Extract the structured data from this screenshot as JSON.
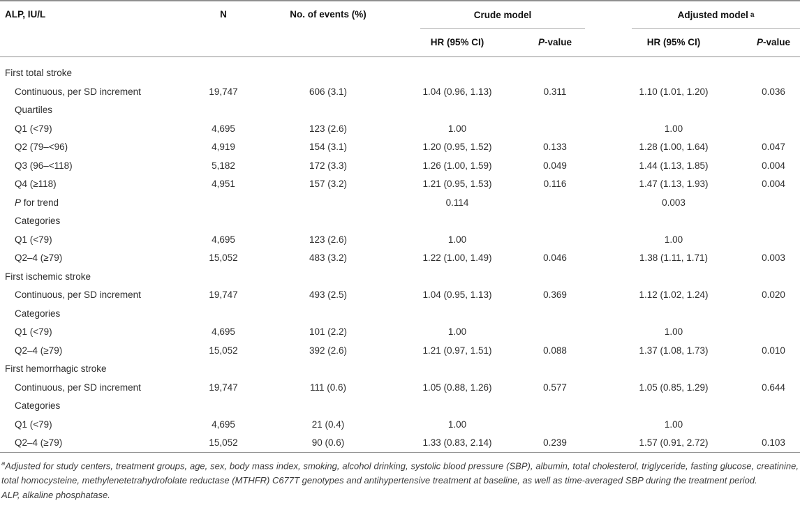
{
  "table": {
    "header": {
      "col1": "ALP, IU/L",
      "n": "N",
      "events": "No. of events (%)",
      "crude_group": "Crude model",
      "adjusted_group": "Adjusted model",
      "adjusted_group_sup": "a",
      "hr_sub": "HR (95% CI)",
      "p_sub_prefix": "P",
      "p_sub_rest": "-value"
    },
    "rows": [
      {
        "label_prefix": "",
        "label": "First total stroke",
        "indent": false,
        "n": "",
        "events": "",
        "crude_hr": "",
        "crude_p": "",
        "adj_hr": "",
        "adj_p": ""
      },
      {
        "label_prefix": "",
        "label": "Continuous, per SD increment",
        "indent": true,
        "n": "19,747",
        "events": "606 (3.1)",
        "crude_hr": "1.04 (0.96, 1.13)",
        "crude_p": "0.311",
        "adj_hr": "1.10 (1.01, 1.20)",
        "adj_p": "0.036"
      },
      {
        "label_prefix": "",
        "label": "Quartiles",
        "indent": true,
        "n": "",
        "events": "",
        "crude_hr": "",
        "crude_p": "",
        "adj_hr": "",
        "adj_p": ""
      },
      {
        "label_prefix": "",
        "label": "Q1 (<79)",
        "indent": true,
        "n": "4,695",
        "events": "123 (2.6)",
        "crude_hr": "1.00",
        "crude_p": "",
        "adj_hr": "1.00",
        "adj_p": ""
      },
      {
        "label_prefix": "",
        "label": "Q2 (79–<96)",
        "indent": true,
        "n": "4,919",
        "events": "154 (3.1)",
        "crude_hr": "1.20 (0.95, 1.52)",
        "crude_p": "0.133",
        "adj_hr": "1.28 (1.00, 1.64)",
        "adj_p": "0.047"
      },
      {
        "label_prefix": "",
        "label": "Q3 (96–<118)",
        "indent": true,
        "n": "5,182",
        "events": "172 (3.3)",
        "crude_hr": "1.26 (1.00, 1.59)",
        "crude_p": "0.049",
        "adj_hr": "1.44 (1.13, 1.85)",
        "adj_p": "0.004"
      },
      {
        "label_prefix": "",
        "label": "Q4 (≥118)",
        "indent": true,
        "n": "4,951",
        "events": "157 (3.2)",
        "crude_hr": "1.21 (0.95, 1.53)",
        "crude_p": "0.116",
        "adj_hr": "1.47 (1.13, 1.93)",
        "adj_p": "0.004"
      },
      {
        "label_prefix": "P",
        "label": " for trend",
        "indent": true,
        "n": "",
        "events": "",
        "crude_hr": "0.114",
        "crude_p": "",
        "adj_hr": "0.003",
        "adj_p": ""
      },
      {
        "label_prefix": "",
        "label": "Categories",
        "indent": true,
        "n": "",
        "events": "",
        "crude_hr": "",
        "crude_p": "",
        "adj_hr": "",
        "adj_p": ""
      },
      {
        "label_prefix": "",
        "label": "Q1 (<79)",
        "indent": true,
        "n": "4,695",
        "events": "123 (2.6)",
        "crude_hr": "1.00",
        "crude_p": "",
        "adj_hr": "1.00",
        "adj_p": ""
      },
      {
        "label_prefix": "",
        "label": "Q2–4 (≥79)",
        "indent": true,
        "n": "15,052",
        "events": "483 (3.2)",
        "crude_hr": "1.22 (1.00, 1.49)",
        "crude_p": "0.046",
        "adj_hr": "1.38 (1.11, 1.71)",
        "adj_p": "0.003"
      },
      {
        "label_prefix": "",
        "label": "First ischemic stroke",
        "indent": false,
        "n": "",
        "events": "",
        "crude_hr": "",
        "crude_p": "",
        "adj_hr": "",
        "adj_p": ""
      },
      {
        "label_prefix": "",
        "label": "Continuous, per SD increment",
        "indent": true,
        "n": "19,747",
        "events": "493 (2.5)",
        "crude_hr": "1.04 (0.95, 1.13)",
        "crude_p": "0.369",
        "adj_hr": "1.12 (1.02, 1.24)",
        "adj_p": "0.020"
      },
      {
        "label_prefix": "",
        "label": "Categories",
        "indent": true,
        "n": "",
        "events": "",
        "crude_hr": "",
        "crude_p": "",
        "adj_hr": "",
        "adj_p": ""
      },
      {
        "label_prefix": "",
        "label": "Q1 (<79)",
        "indent": true,
        "n": "4,695",
        "events": "101 (2.2)",
        "crude_hr": "1.00",
        "crude_p": "",
        "adj_hr": "1.00",
        "adj_p": ""
      },
      {
        "label_prefix": "",
        "label": "Q2–4 (≥79)",
        "indent": true,
        "n": "15,052",
        "events": "392 (2.6)",
        "crude_hr": "1.21 (0.97, 1.51)",
        "crude_p": "0.088",
        "adj_hr": "1.37 (1.08, 1.73)",
        "adj_p": "0.010"
      },
      {
        "label_prefix": "",
        "label": "First hemorrhagic stroke",
        "indent": false,
        "n": "",
        "events": "",
        "crude_hr": "",
        "crude_p": "",
        "adj_hr": "",
        "adj_p": ""
      },
      {
        "label_prefix": "",
        "label": "Continuous, per SD increment",
        "indent": true,
        "n": "19,747",
        "events": "111 (0.6)",
        "crude_hr": "1.05 (0.88, 1.26)",
        "crude_p": "0.577",
        "adj_hr": "1.05 (0.85, 1.29)",
        "adj_p": "0.644"
      },
      {
        "label_prefix": "",
        "label": "Categories",
        "indent": true,
        "n": "",
        "events": "",
        "crude_hr": "",
        "crude_p": "",
        "adj_hr": "",
        "adj_p": ""
      },
      {
        "label_prefix": "",
        "label": "Q1 (<79)",
        "indent": true,
        "n": "4,695",
        "events": "21 (0.4)",
        "crude_hr": "1.00",
        "crude_p": "",
        "adj_hr": "1.00",
        "adj_p": ""
      },
      {
        "label_prefix": "",
        "label": "Q2–4 (≥79)",
        "indent": true,
        "n": "15,052",
        "events": "90 (0.6)",
        "crude_hr": "1.33 (0.83, 2.14)",
        "crude_p": "0.239",
        "adj_hr": "1.57 (0.91, 2.72)",
        "adj_p": "0.103"
      }
    ]
  },
  "footnotes": {
    "adjusted_sup": "a",
    "adjusted_text": "Adjusted for study centers, treatment groups, age, sex, body mass index, smoking, alcohol drinking, systolic blood pressure (SBP), albumin, total cholesterol, triglyceride, fasting glucose, creatinine, total homocysteine, methylenetetrahydrofolate reductase (MTHFR) C677T genotypes and antihypertensive treatment at baseline, as well as time-averaged SBP during the treatment period.",
    "abbrev_text": "ALP, alkaline phosphatase."
  }
}
